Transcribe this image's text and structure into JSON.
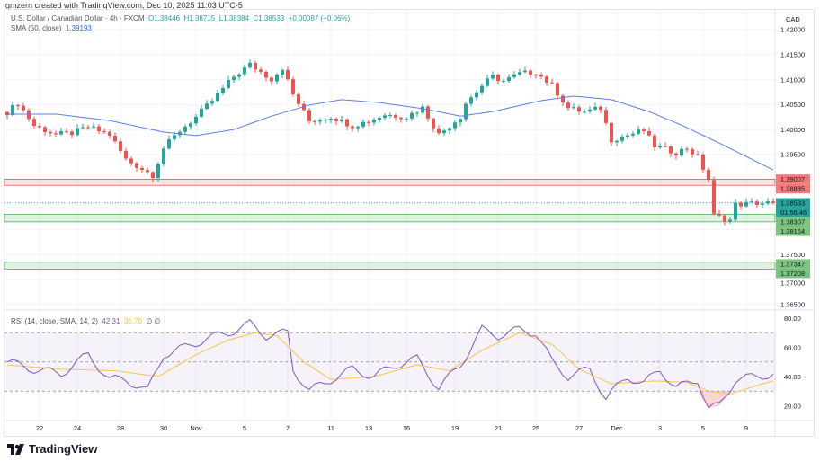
{
  "credit": "gmzern created with TradingView.com, Dec 10, 2025 11:03 UTC-5",
  "symbol": "U.S. Dollar / Canadian Dollar · 4h · FXCM",
  "ohlc": {
    "o": "O1.38446",
    "h": "H1.38715",
    "l": "L1.38384",
    "c": "C1.38533",
    "chg": "+0.00087 (+0.06%)"
  },
  "sma": {
    "label": "SMA (50, close)",
    "value": "1.39193"
  },
  "rsi": {
    "label": "RSI (14, close, SMA, 14, 2)",
    "value": "42.31",
    "sma_value": "36.76",
    "extra": "∅ ∅"
  },
  "currency": "CAD",
  "colors": {
    "up": "#26a69a",
    "down": "#ef5350",
    "sma": "#5b7ee5",
    "rsi": "#7e57c2",
    "rsi_sma": "#f7c548"
  },
  "price_ticks": [
    "1.42000",
    "1.41500",
    "1.41000",
    "1.40500",
    "1.40000",
    "1.39500",
    "1.37500",
    "1.37000",
    "1.36500"
  ],
  "price_tick_values": [
    1.42,
    1.415,
    1.41,
    1.405,
    1.4,
    1.395,
    1.375,
    1.37,
    1.365
  ],
  "current": {
    "price": "1.38533",
    "countdown": "01:56:46",
    "value": 1.38533
  },
  "zones": [
    {
      "type": "resistance",
      "top": "1.39007",
      "bottom": "1.38885",
      "t": 1.39007,
      "b": 1.38885
    },
    {
      "type": "support",
      "top": "1.38307",
      "bottom": "1.38154",
      "t": 1.38307,
      "b": 1.38154
    },
    {
      "type": "support",
      "top": "1.37347",
      "bottom": "1.37208",
      "t": 1.37347,
      "b": 1.37208
    }
  ],
  "rsi_ticks": [
    "80.00",
    "60.00",
    "40.00",
    "20.00"
  ],
  "rsi_tick_values": [
    80,
    60,
    40,
    20
  ],
  "x_labels": [
    "22",
    "24",
    "28",
    "30",
    "Nov",
    "5",
    "7",
    "11",
    "13",
    "16",
    "19",
    "21",
    "25",
    "27",
    "Dec",
    "3",
    "5",
    "9"
  ],
  "x_label_index": [
    6,
    13,
    21,
    29,
    35,
    44,
    52,
    60,
    67,
    74,
    83,
    91,
    98,
    106,
    113,
    121,
    129,
    137
  ],
  "chart_data": {
    "type": "candlestick",
    "price_path": [
      [
        0,
        1.4035
      ],
      [
        2,
        1.4053
      ],
      [
        5,
        1.4008
      ],
      [
        9,
        1.399
      ],
      [
        12,
        1.3993
      ],
      [
        15,
        1.4005
      ],
      [
        19,
        1.399
      ],
      [
        22,
        1.394
      ],
      [
        27,
        1.3909
      ],
      [
        29,
        1.3963
      ],
      [
        32,
        1.3998
      ],
      [
        35,
        1.4025
      ],
      [
        38,
        1.4058
      ],
      [
        42,
        1.4106
      ],
      [
        45,
        1.413
      ],
      [
        49,
        1.4101
      ],
      [
        51,
        1.4124
      ],
      [
        53,
        1.407
      ],
      [
        56,
        1.4017
      ],
      [
        60,
        1.4026
      ],
      [
        64,
        1.4008
      ],
      [
        67,
        1.4017
      ],
      [
        70,
        1.403
      ],
      [
        74,
        1.4026
      ],
      [
        77,
        1.4044
      ],
      [
        80,
        1.399
      ],
      [
        84,
        1.4026
      ],
      [
        85,
        1.4053
      ],
      [
        88,
        1.4088
      ],
      [
        90,
        1.4106
      ],
      [
        92,
        1.4097
      ],
      [
        95,
        1.4112
      ],
      [
        98,
        1.4115
      ],
      [
        101,
        1.4088
      ],
      [
        104,
        1.4043
      ],
      [
        107,
        1.4035
      ],
      [
        110,
        1.4043
      ],
      [
        112,
        1.398
      ],
      [
        115,
        1.3989
      ],
      [
        118,
        1.3998
      ],
      [
        120,
        1.3967
      ],
      [
        124,
        1.3954
      ],
      [
        126,
        1.3963
      ],
      [
        128,
        1.3945
      ],
      [
        130,
        1.39
      ],
      [
        131,
        1.3828
      ],
      [
        134,
        1.3819
      ],
      [
        135,
        1.385
      ],
      [
        139,
        1.3853
      ],
      [
        142,
        1.3853
      ]
    ],
    "sma_path": [
      [
        0,
        1.4031
      ],
      [
        9,
        1.4031
      ],
      [
        19,
        1.4018
      ],
      [
        29,
        1.3995
      ],
      [
        35,
        1.3988
      ],
      [
        42,
        1.4
      ],
      [
        49,
        1.4027
      ],
      [
        56,
        1.4049
      ],
      [
        62,
        1.406
      ],
      [
        69,
        1.4054
      ],
      [
        77,
        1.4042
      ],
      [
        84,
        1.4027
      ],
      [
        90,
        1.4036
      ],
      [
        99,
        1.4058
      ],
      [
        105,
        1.4067
      ],
      [
        112,
        1.406
      ],
      [
        119,
        1.4036
      ],
      [
        125,
        1.4009
      ],
      [
        132,
        1.3973
      ],
      [
        137,
        1.3946
      ],
      [
        142,
        1.3919
      ]
    ],
    "rsi_path": [
      [
        0,
        50
      ],
      [
        5,
        45
      ],
      [
        10,
        42
      ],
      [
        15,
        55
      ],
      [
        19,
        38
      ],
      [
        22,
        38
      ],
      [
        26,
        30
      ],
      [
        29,
        55
      ],
      [
        33,
        60
      ],
      [
        37,
        66
      ],
      [
        41,
        70
      ],
      [
        45,
        76
      ],
      [
        48,
        68
      ],
      [
        52,
        70
      ],
      [
        53,
        45
      ],
      [
        56,
        30
      ],
      [
        60,
        38
      ],
      [
        64,
        45
      ],
      [
        68,
        40
      ],
      [
        72,
        48
      ],
      [
        76,
        52
      ],
      [
        80,
        32
      ],
      [
        84,
        48
      ],
      [
        88,
        72
      ],
      [
        91,
        68
      ],
      [
        95,
        72
      ],
      [
        98,
        70
      ],
      [
        101,
        50
      ],
      [
        104,
        40
      ],
      [
        108,
        45
      ],
      [
        111,
        25
      ],
      [
        115,
        40
      ],
      [
        118,
        35
      ],
      [
        121,
        45
      ],
      [
        124,
        32
      ],
      [
        128,
        38
      ],
      [
        130,
        18
      ],
      [
        132,
        20
      ],
      [
        135,
        38
      ],
      [
        139,
        40
      ],
      [
        142,
        42
      ]
    ],
    "rsi_sma_path": [
      [
        0,
        48
      ],
      [
        10,
        45
      ],
      [
        20,
        44
      ],
      [
        28,
        40
      ],
      [
        35,
        55
      ],
      [
        41,
        65
      ],
      [
        46,
        70
      ],
      [
        50,
        68
      ],
      [
        55,
        50
      ],
      [
        60,
        38
      ],
      [
        68,
        40
      ],
      [
        76,
        48
      ],
      [
        82,
        44
      ],
      [
        88,
        58
      ],
      [
        95,
        70
      ],
      [
        101,
        62
      ],
      [
        106,
        45
      ],
      [
        112,
        35
      ],
      [
        120,
        37
      ],
      [
        126,
        36
      ],
      [
        130,
        30
      ],
      [
        134,
        28
      ],
      [
        140,
        35
      ],
      [
        142,
        37
      ]
    ],
    "ylim": [
      1.3625,
      1.4225
    ],
    "rsi_ylim": [
      12,
      84
    ]
  }
}
